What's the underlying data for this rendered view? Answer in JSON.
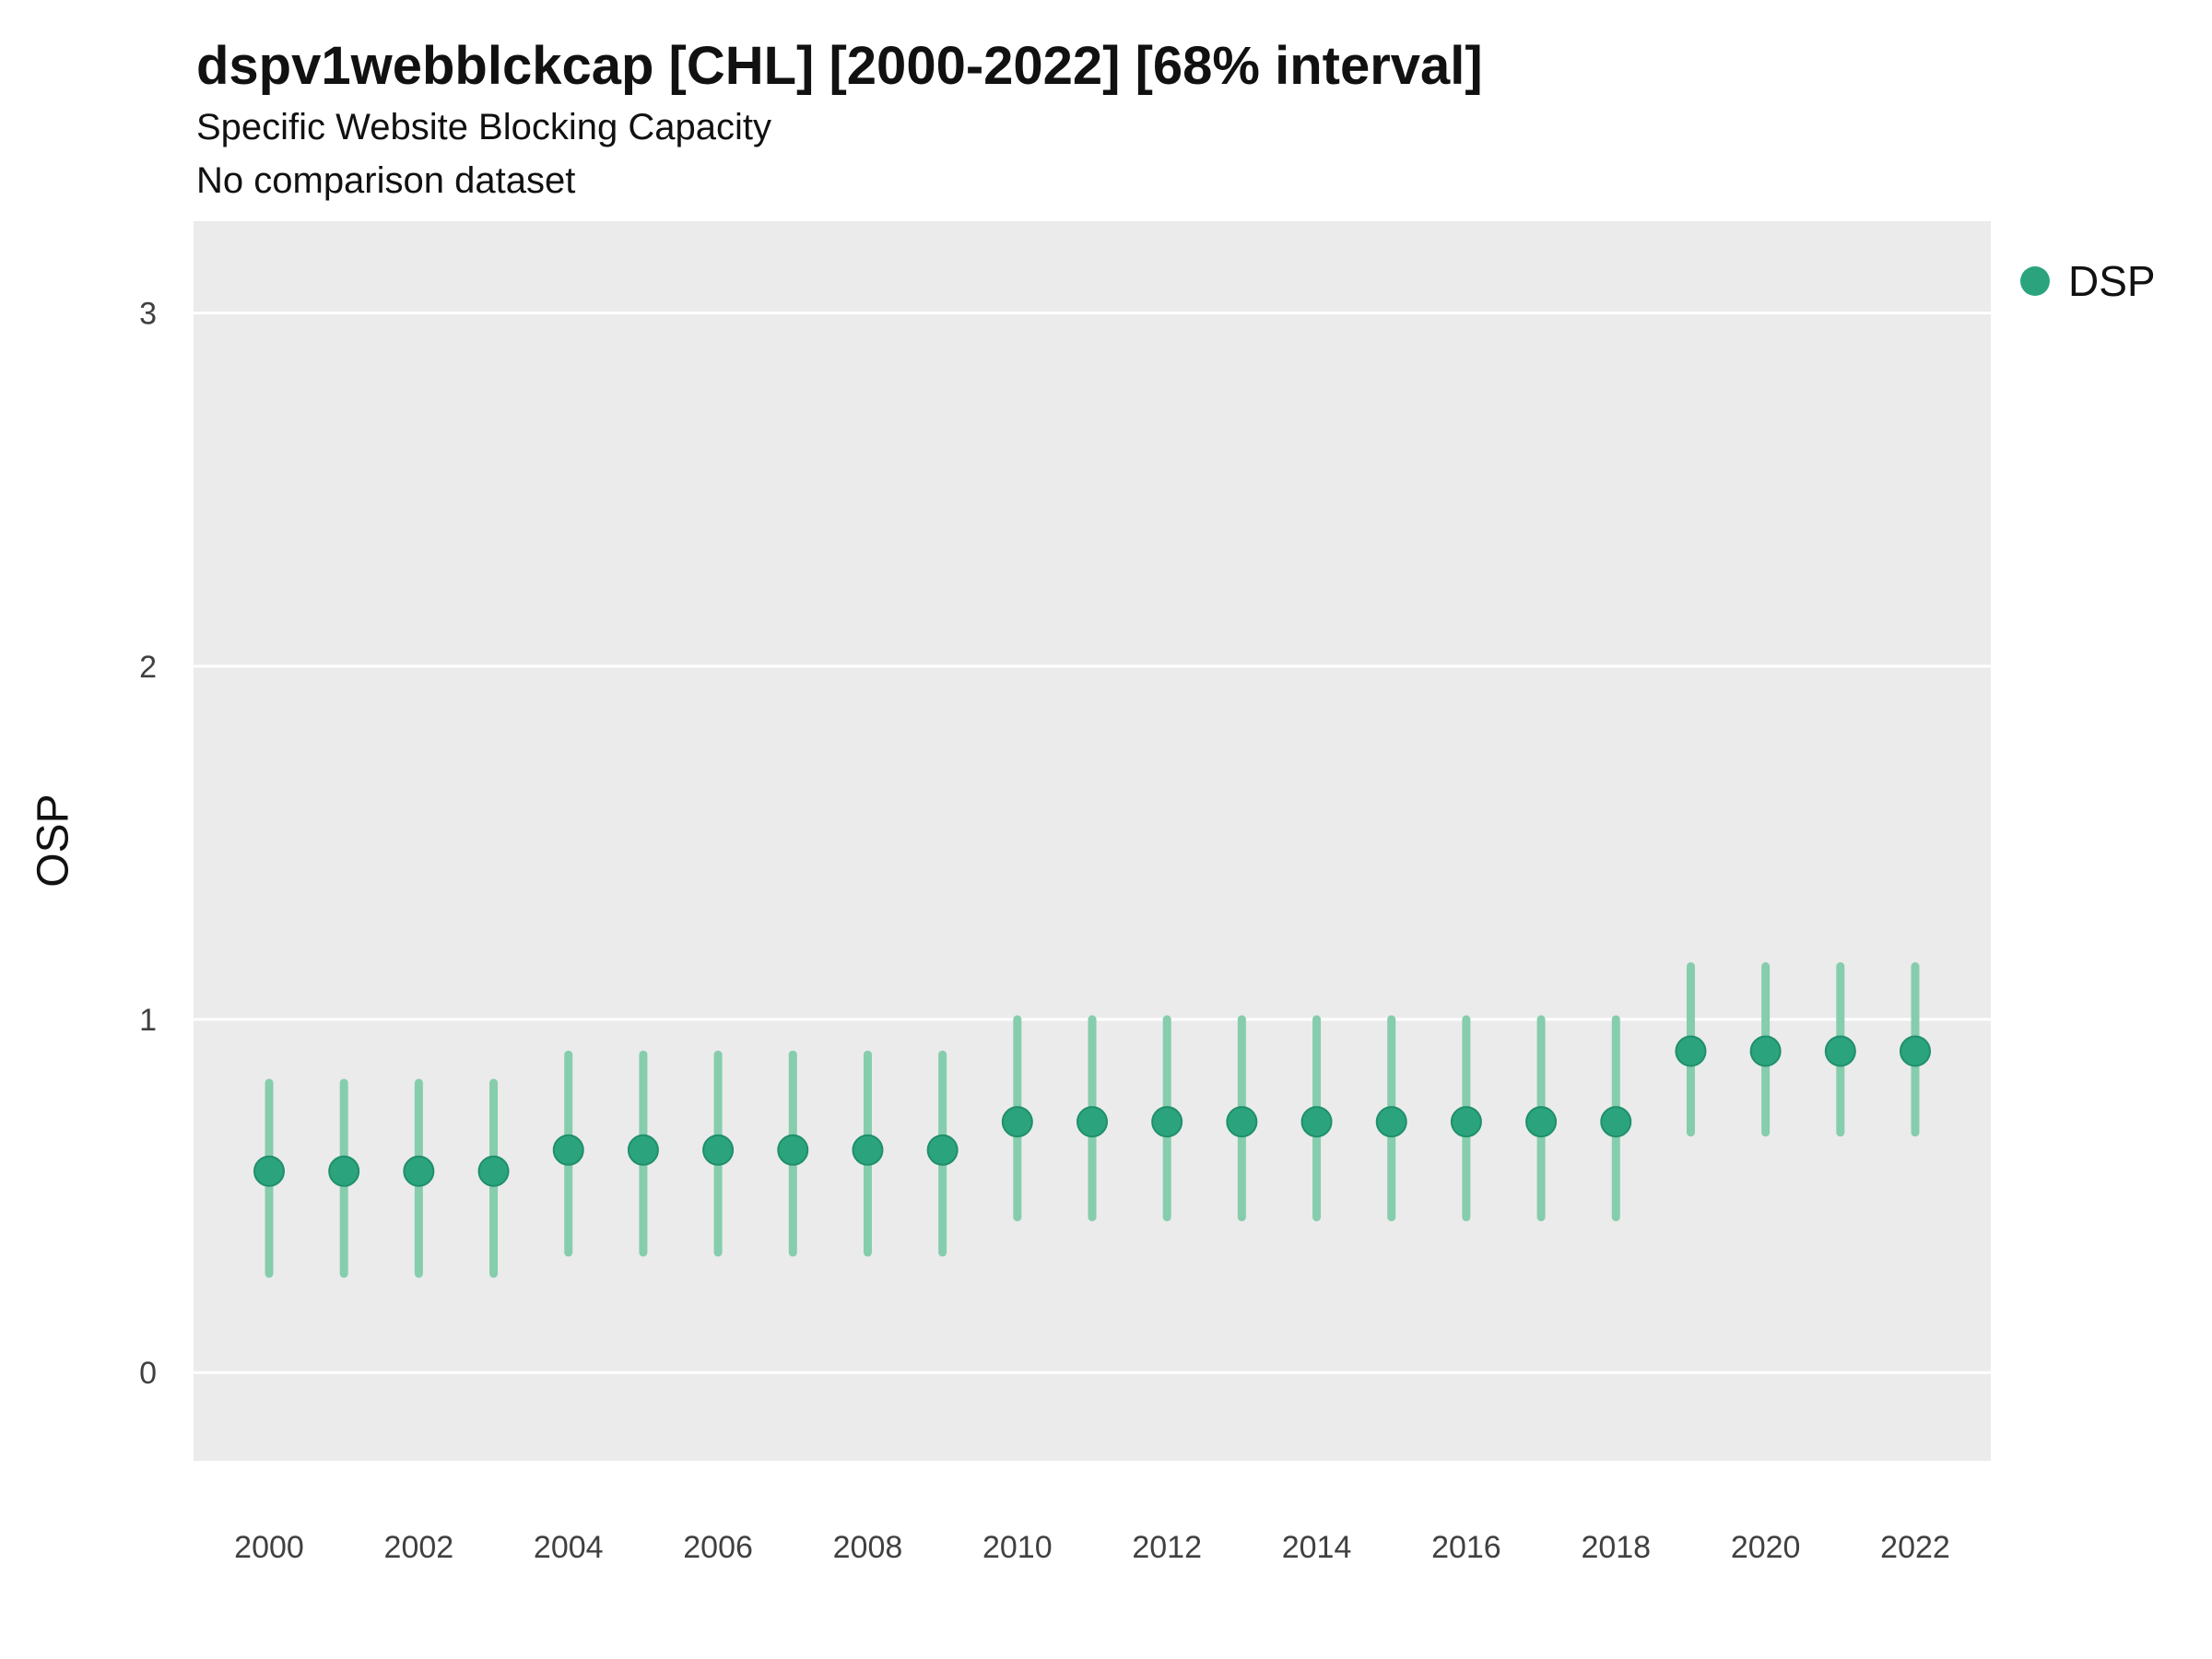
{
  "header": {
    "title": "dspv1webblckcap [CHL] [2000-2022] [68% interval]",
    "subtitle": "Specific Website Blocking Capacity",
    "note": "No comparison dataset"
  },
  "legend": {
    "items": [
      {
        "label": "DSP",
        "color": "#2BA47E"
      }
    ]
  },
  "chart_data": {
    "type": "scatter",
    "title": "dspv1webblckcap [CHL] [2000-2022] [68% interval]",
    "subtitle": "Specific Website Blocking Capacity",
    "note": "No comparison dataset",
    "interval": "68% interval",
    "xlabel": "",
    "ylabel": "OSP",
    "ylim": [
      -0.25,
      3.26
    ],
    "y_ticks": [
      0,
      1,
      2,
      3
    ],
    "x_tick_labels": [
      2000,
      2002,
      2004,
      2006,
      2008,
      2010,
      2012,
      2014,
      2016,
      2018,
      2020,
      2022
    ],
    "grid": true,
    "legend_position": "right",
    "panel_background": "#EBEBEB",
    "gridline_color": "#FFFFFF",
    "series": [
      {
        "name": "DSP",
        "point_color": "#2BA47E",
        "bar_color": "#85CDAD",
        "x": [
          2000,
          2001,
          2002,
          2003,
          2004,
          2005,
          2006,
          2007,
          2008,
          2009,
          2010,
          2011,
          2012,
          2013,
          2014,
          2015,
          2016,
          2017,
          2018,
          2019,
          2020,
          2021,
          2022
        ],
        "y": [
          0.57,
          0.57,
          0.57,
          0.57,
          0.63,
          0.63,
          0.63,
          0.63,
          0.63,
          0.63,
          0.71,
          0.71,
          0.71,
          0.71,
          0.71,
          0.71,
          0.71,
          0.71,
          0.71,
          0.91,
          0.91,
          0.91,
          0.91
        ],
        "y_low": [
          0.28,
          0.28,
          0.28,
          0.28,
          0.34,
          0.34,
          0.34,
          0.34,
          0.34,
          0.34,
          0.44,
          0.44,
          0.44,
          0.44,
          0.44,
          0.44,
          0.44,
          0.44,
          0.44,
          0.68,
          0.68,
          0.68,
          0.68
        ],
        "y_high": [
          0.82,
          0.82,
          0.82,
          0.82,
          0.9,
          0.9,
          0.9,
          0.9,
          0.9,
          0.9,
          1.0,
          1.0,
          1.0,
          1.0,
          1.0,
          1.0,
          1.0,
          1.0,
          1.0,
          1.15,
          1.15,
          1.15,
          1.15
        ]
      }
    ]
  }
}
